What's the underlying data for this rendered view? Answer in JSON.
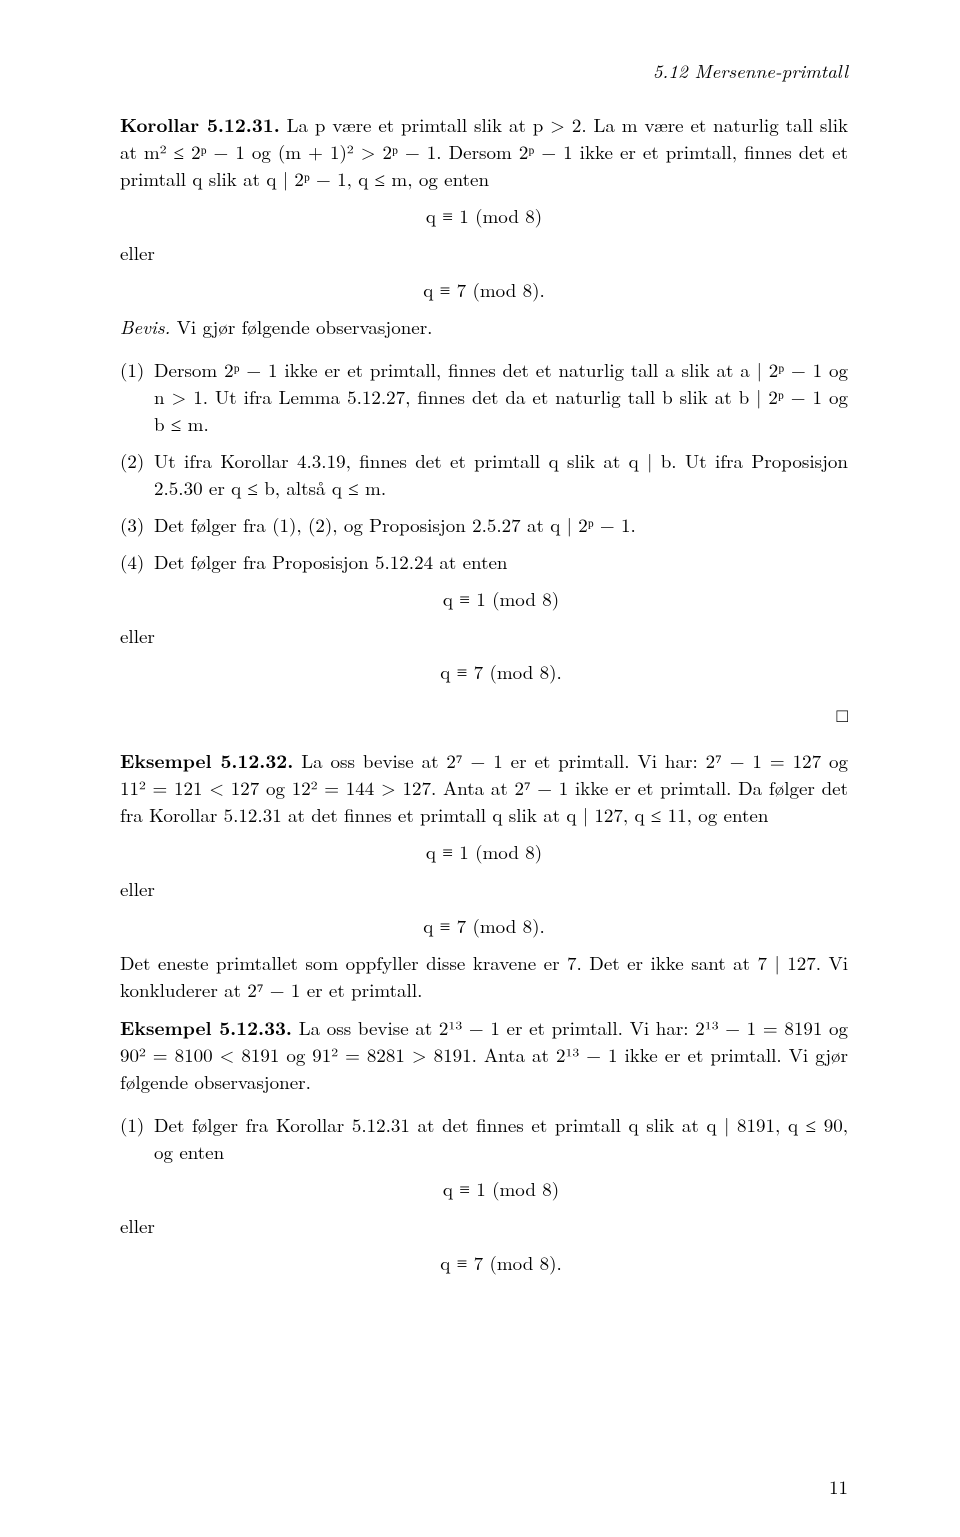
{
  "header": {
    "section": "5.12 Mersenne-primtall"
  },
  "korollar": {
    "label": "Korollar 5.12.31.",
    "statement_a": "La p være et primtall slik at p > 2. La m være et naturlig tall slik at m² ≤ 2ᵖ − 1 og (m + 1)² > 2ᵖ − 1. Dersom 2ᵖ − 1 ikke er et primtall, finnes det et primtall q slik at q | 2ᵖ − 1, q ≤ m, og enten",
    "eq1": "q ≡ 1   (mod 8)",
    "eller": "eller",
    "eq2": "q ≡ 7   (mod 8)."
  },
  "bevis": {
    "label": "Bevis.",
    "intro": "Vi gjør følgende observasjoner.",
    "items": [
      "Dersom 2ᵖ − 1 ikke er et primtall, finnes det et naturlig tall a slik at a | 2ᵖ − 1 og n > 1. Ut ifra Lemma 5.12.27, finnes det da et naturlig tall b slik at b | 2ᵖ − 1 og b ≤ m.",
      "Ut ifra Korollar 4.3.19, finnes det et primtall q slik at q | b. Ut ifra Proposisjon 2.5.30 er q ≤ b, altså q ≤ m.",
      "Det følger fra (1), (2), og Proposisjon 2.5.27 at q | 2ᵖ − 1.",
      "Det følger fra Proposisjon 5.12.24 at enten"
    ],
    "item4_eq1": "q ≡ 1   (mod 8)",
    "item4_eller": "eller",
    "item4_eq2": "q ≡ 7   (mod 8)."
  },
  "qed": "□",
  "eksempel32": {
    "label": "Eksempel 5.12.32.",
    "text": "La oss bevise at 2⁷ − 1 er et primtall. Vi har: 2⁷ − 1 = 127 og 11² = 121 < 127 og 12² = 144 > 127. Anta at 2⁷ − 1 ikke er et primtall. Da følger det fra Korollar 5.12.31 at det finnes et primtall q slik at q | 127, q ≤ 11, og enten",
    "eq1": "q ≡ 1   (mod 8)",
    "eller": "eller",
    "eq2": "q ≡ 7   (mod 8).",
    "conclusion": "Det eneste primtallet som oppfyller disse kravene er 7. Det er ikke sant at 7 | 127. Vi konkluderer at 2⁷ − 1 er et primtall."
  },
  "eksempel33": {
    "label": "Eksempel 5.12.33.",
    "text": "La oss bevise at 2¹³ − 1 er et primtall. Vi har: 2¹³ − 1 = 8191 og 90² = 8100 < 8191 og 91² = 8281 > 8191. Anta at 2¹³ − 1 ikke er et primtall. Vi gjør følgende observasjoner.",
    "item1": "Det følger fra Korollar 5.12.31 at det finnes et primtall q slik at q | 8191, q ≤ 90, og enten",
    "item1_eq1": "q ≡ 1   (mod 8)",
    "item1_eller": "eller",
    "item1_eq2": "q ≡ 7   (mod 8)."
  },
  "page_number": "11"
}
